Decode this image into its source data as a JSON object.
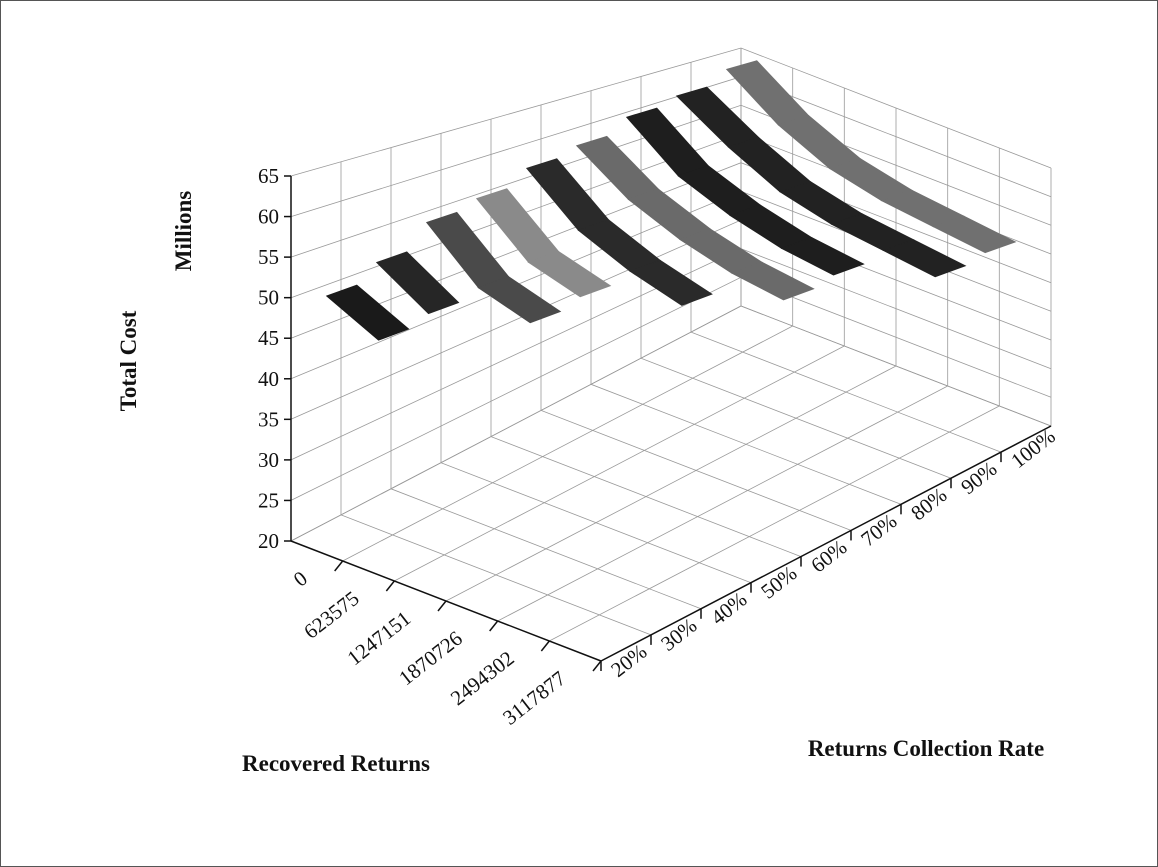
{
  "chart_data": {
    "type": "ribbon3d",
    "y_title": "Total Cost",
    "y_units": "Millions",
    "z_title": "Recovered Returns",
    "x_title": "Returns Collection Rate",
    "categories": [
      "0",
      "623575",
      "1247151",
      "1870726",
      "2494302",
      "3117877"
    ],
    "series": [
      {
        "name": "20%",
        "color": "#1a1a1a",
        "values": [
          51,
          48,
          null,
          null,
          null,
          null
        ]
      },
      {
        "name": "30%",
        "color": "#262626",
        "values": [
          53,
          49,
          null,
          null,
          null,
          null
        ]
      },
      {
        "name": "40%",
        "color": "#4a4a4a",
        "values": [
          56,
          50,
          48,
          null,
          null,
          null
        ]
      },
      {
        "name": "50%",
        "color": "#8a8a8a",
        "values": [
          57,
          51,
          49,
          null,
          null,
          null
        ]
      },
      {
        "name": "60%",
        "color": "#2a2a2a",
        "values": [
          59,
          53,
          50,
          48,
          null,
          null
        ]
      },
      {
        "name": "70%",
        "color": "#6a6a6a",
        "values": [
          60,
          55,
          52,
          50,
          49,
          null
        ]
      },
      {
        "name": "80%",
        "color": "#1e1e1e",
        "values": [
          62,
          56,
          53,
          51,
          50,
          null
        ]
      },
      {
        "name": "90%",
        "color": "#222222",
        "values": [
          63,
          58,
          54,
          52,
          51,
          50
        ]
      },
      {
        "name": "100%",
        "color": "#707070",
        "values": [
          65,
          59,
          55,
          53,
          52,
          51
        ]
      }
    ],
    "ylim": [
      20,
      65
    ],
    "yticks": [
      20,
      25,
      30,
      35,
      40,
      45,
      50,
      55,
      60,
      65
    ],
    "grid": true
  }
}
